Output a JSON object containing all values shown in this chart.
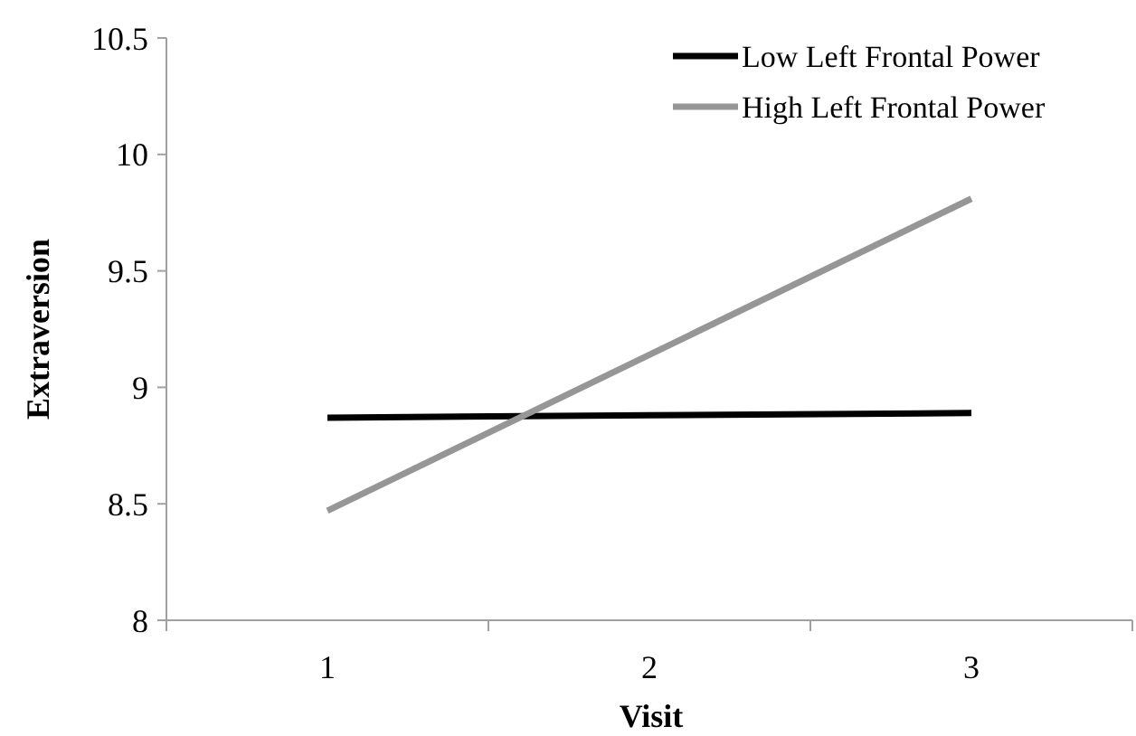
{
  "chart_data": {
    "type": "line",
    "xlabel": "Visit",
    "ylabel": "Extraversion",
    "categories": [
      "1",
      "2",
      "3"
    ],
    "series": [
      {
        "name": "Low Left Frontal Power",
        "color": "#000000",
        "values": [
          8.87,
          8.88,
          8.89
        ]
      },
      {
        "name": "High Left Frontal Power",
        "color": "#969696",
        "values": [
          8.47,
          9.14,
          9.81
        ]
      }
    ],
    "ylim": [
      8,
      10.5
    ],
    "yticks": [
      8,
      8.5,
      9,
      9.5,
      10,
      10.5
    ],
    "grid": false,
    "legend": "top right",
    "marker": "none",
    "line_style": "solid"
  }
}
